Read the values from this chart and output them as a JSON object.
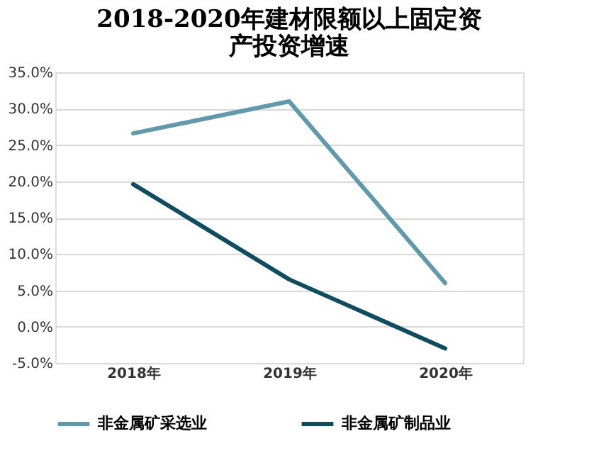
{
  "chart_data": {
    "type": "line",
    "title": "2018-2020年建材限额以上固定资产投资增速",
    "categories": [
      "2018年",
      "2019年",
      "2020年"
    ],
    "series": [
      {
        "name": "非金属矿采选业",
        "color": "#5f99ab",
        "values": [
          26.6,
          31.0,
          6.0
        ]
      },
      {
        "name": "非金属矿制品业",
        "color": "#0e4c60",
        "values": [
          19.6,
          6.5,
          -3.0
        ]
      }
    ],
    "ylim": [
      -5,
      35
    ],
    "yticks": [
      {
        "value": -5,
        "label": "-5.0%"
      },
      {
        "value": 0,
        "label": "0.0%"
      },
      {
        "value": 5,
        "label": "5.0%"
      },
      {
        "value": 10,
        "label": "10.0%"
      },
      {
        "value": 15,
        "label": "15.0%"
      },
      {
        "value": 20,
        "label": "20.0%"
      },
      {
        "value": 25,
        "label": "25.0%"
      },
      {
        "value": 30,
        "label": "30.0%"
      },
      {
        "value": 35,
        "label": "35.0%"
      }
    ],
    "grid": "y",
    "legend": "bottom",
    "marker": "none",
    "line_style": "solid"
  }
}
